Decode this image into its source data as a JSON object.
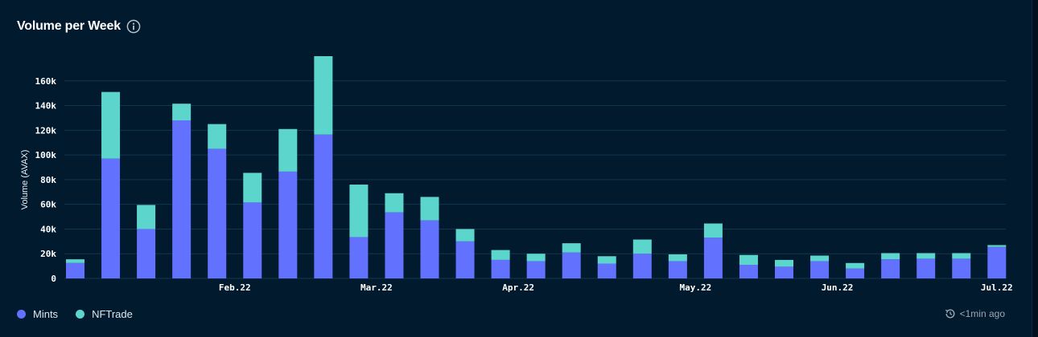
{
  "header": {
    "title": "Volume per Week"
  },
  "status": {
    "updated_text": "<1min ago"
  },
  "colors": {
    "mints": "#6272fe",
    "nftrade": "#5cd6cd",
    "grid": "#12364f"
  },
  "chart_data": {
    "type": "bar",
    "stacked": true,
    "title": "Volume per Week",
    "xlabel": "",
    "ylabel": "Volume (AVAX)",
    "ylim": [
      0,
      180000
    ],
    "yticks": [
      0,
      20000,
      40000,
      60000,
      80000,
      100000,
      120000,
      140000,
      160000
    ],
    "ytick_labels": [
      "0",
      "20k",
      "40k",
      "60k",
      "80k",
      "100k",
      "120k",
      "140k",
      "160k"
    ],
    "xtick_labels": [
      {
        "label": "Feb.22",
        "after_bar": 4
      },
      {
        "label": "Mar.22",
        "after_bar": 8
      },
      {
        "label": "Apr.22",
        "after_bar": 12
      },
      {
        "label": "May.22",
        "after_bar": 17
      },
      {
        "label": "Jun.22",
        "after_bar": 21
      },
      {
        "label": "Jul.22",
        "after_bar": 25.5
      }
    ],
    "grid": true,
    "legend_position": "bottom-left",
    "series": [
      {
        "name": "Mints",
        "color": "#6272fe",
        "values": [
          12500,
          97000,
          40000,
          128000,
          105000,
          61500,
          86500,
          116500,
          33500,
          53500,
          47000,
          30000,
          15000,
          14000,
          21000,
          12000,
          20000,
          14000,
          33000,
          11000,
          9500,
          14000,
          8000,
          15500,
          16000,
          16000,
          25500
        ]
      },
      {
        "name": "NFTrade",
        "color": "#5cd6cd",
        "values": [
          3000,
          54000,
          19500,
          13500,
          20000,
          24000,
          34500,
          63500,
          42500,
          15500,
          19000,
          10000,
          8000,
          6000,
          7500,
          6000,
          11500,
          5500,
          11500,
          8000,
          5500,
          4500,
          4500,
          5000,
          4500,
          4500,
          1500
        ]
      }
    ]
  },
  "legend": {
    "items": [
      {
        "label": "Mints"
      },
      {
        "label": "NFTrade"
      }
    ]
  }
}
